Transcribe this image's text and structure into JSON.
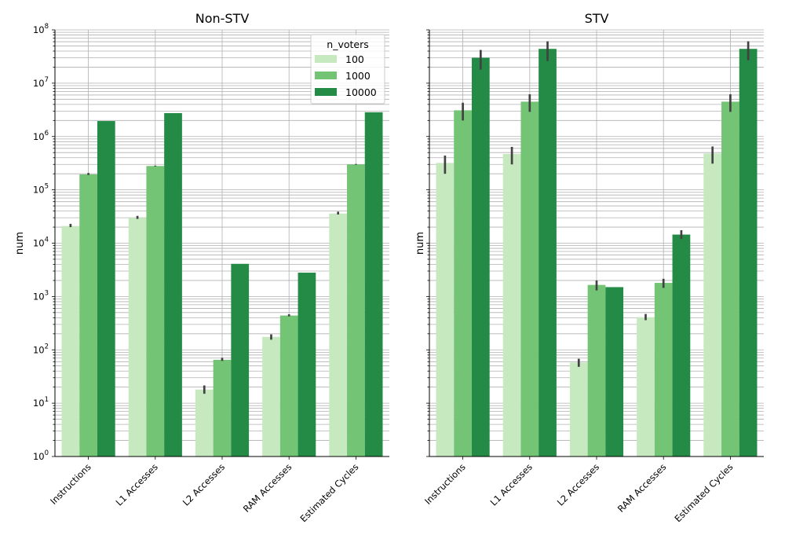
{
  "chart_data": [
    {
      "type": "bar",
      "title": "Non-STV",
      "xlabel": "",
      "ylabel": "num",
      "yscale": "log",
      "ylim": [
        1,
        100000000
      ],
      "ytick_labels": [
        {
          "base": "10",
          "exp": "0"
        },
        {
          "base": "10",
          "exp": "1"
        },
        {
          "base": "10",
          "exp": "2"
        },
        {
          "base": "10",
          "exp": "3"
        },
        {
          "base": "10",
          "exp": "4"
        },
        {
          "base": "10",
          "exp": "5"
        },
        {
          "base": "10",
          "exp": "6"
        },
        {
          "base": "10",
          "exp": "7"
        },
        {
          "base": "10",
          "exp": "8"
        }
      ],
      "grid": true,
      "categories": [
        "Instructions",
        "L1 Accesses",
        "L2 Accesses",
        "RAM Accesses",
        "Estimated Cycles"
      ],
      "series": [
        {
          "name": "100",
          "color": "#c7e9c0",
          "values": [
            21000,
            30000,
            18,
            175,
            36000
          ],
          "err_low": [
            20000,
            28500,
            15,
            155,
            34500
          ],
          "err_high": [
            23000,
            32500,
            21.5,
            195,
            39000
          ]
        },
        {
          "name": "1000",
          "color": "#74c476",
          "values": [
            195000,
            280000,
            65,
            440,
            300000
          ],
          "err_low": [
            190000,
            275000,
            62,
            425,
            295000
          ],
          "err_high": [
            207000,
            285000,
            71,
            465,
            305000
          ]
        },
        {
          "name": "10000",
          "color": "#238b45",
          "values": [
            1950000,
            2750000,
            4100,
            2800,
            2850000
          ],
          "err_low": [
            1950000,
            2750000,
            4100,
            2800,
            2850000
          ],
          "err_high": [
            1950000,
            2750000,
            4100,
            2800,
            2850000
          ]
        }
      ],
      "legend": {
        "title": "n_voters",
        "placement": "upper right"
      }
    },
    {
      "type": "bar",
      "title": "STV",
      "xlabel": "",
      "ylabel": "num",
      "yscale": "log",
      "ylim": [
        1,
        100000000
      ],
      "grid": true,
      "categories": [
        "Instructions",
        "L1 Accesses",
        "L2 Accesses",
        "RAM Accesses",
        "Estimated Cycles"
      ],
      "series": [
        {
          "name": "100",
          "color": "#c7e9c0",
          "values": [
            320000,
            470000,
            58,
            410,
            480000
          ],
          "err_low": [
            200000,
            300000,
            48,
            360,
            310000
          ],
          "err_high": [
            440000,
            640000,
            68,
            470,
            650000
          ]
        },
        {
          "name": "1000",
          "color": "#74c476",
          "values": [
            3100000,
            4500000,
            1650,
            1800,
            4500000
          ],
          "err_low": [
            2000000,
            2900000,
            1300,
            1450,
            2900000
          ],
          "err_high": [
            4300000,
            6200000,
            2000,
            2150,
            6200000
          ]
        },
        {
          "name": "10000",
          "color": "#238b45",
          "values": [
            30000000,
            44000000,
            1500,
            14500,
            44000000
          ],
          "err_low": [
            18000000,
            26000000,
            1500,
            12000,
            27000000
          ],
          "err_high": [
            42000000,
            61000000,
            1500,
            17500,
            61000000
          ]
        }
      ]
    }
  ]
}
